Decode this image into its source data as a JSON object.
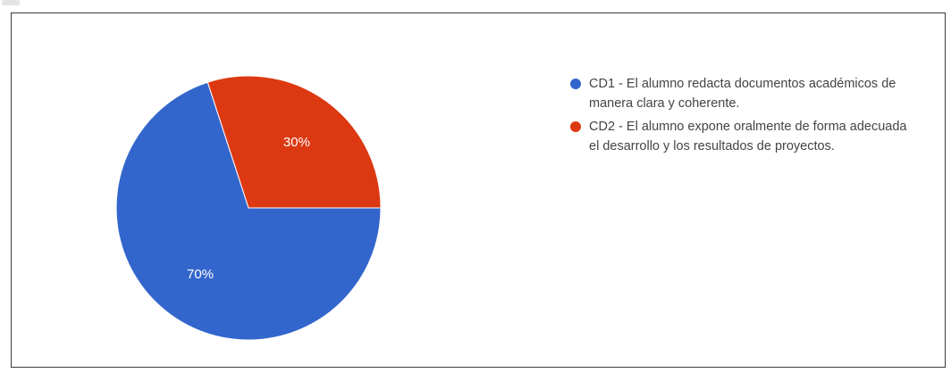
{
  "chart_data": {
    "type": "pie",
    "categories": [
      "CD1 - El alumno redacta documentos académicos de manera clara y coherente.",
      "CD2 - El alumno expone oralmente de forma adecuada el desarrollo y los resultados de proyectos."
    ],
    "values": [
      70,
      30
    ],
    "data_labels": [
      "70%",
      "30%"
    ],
    "colors": [
      "#3366cc",
      "#dc3912"
    ],
    "legend_position": "right",
    "title": ""
  }
}
